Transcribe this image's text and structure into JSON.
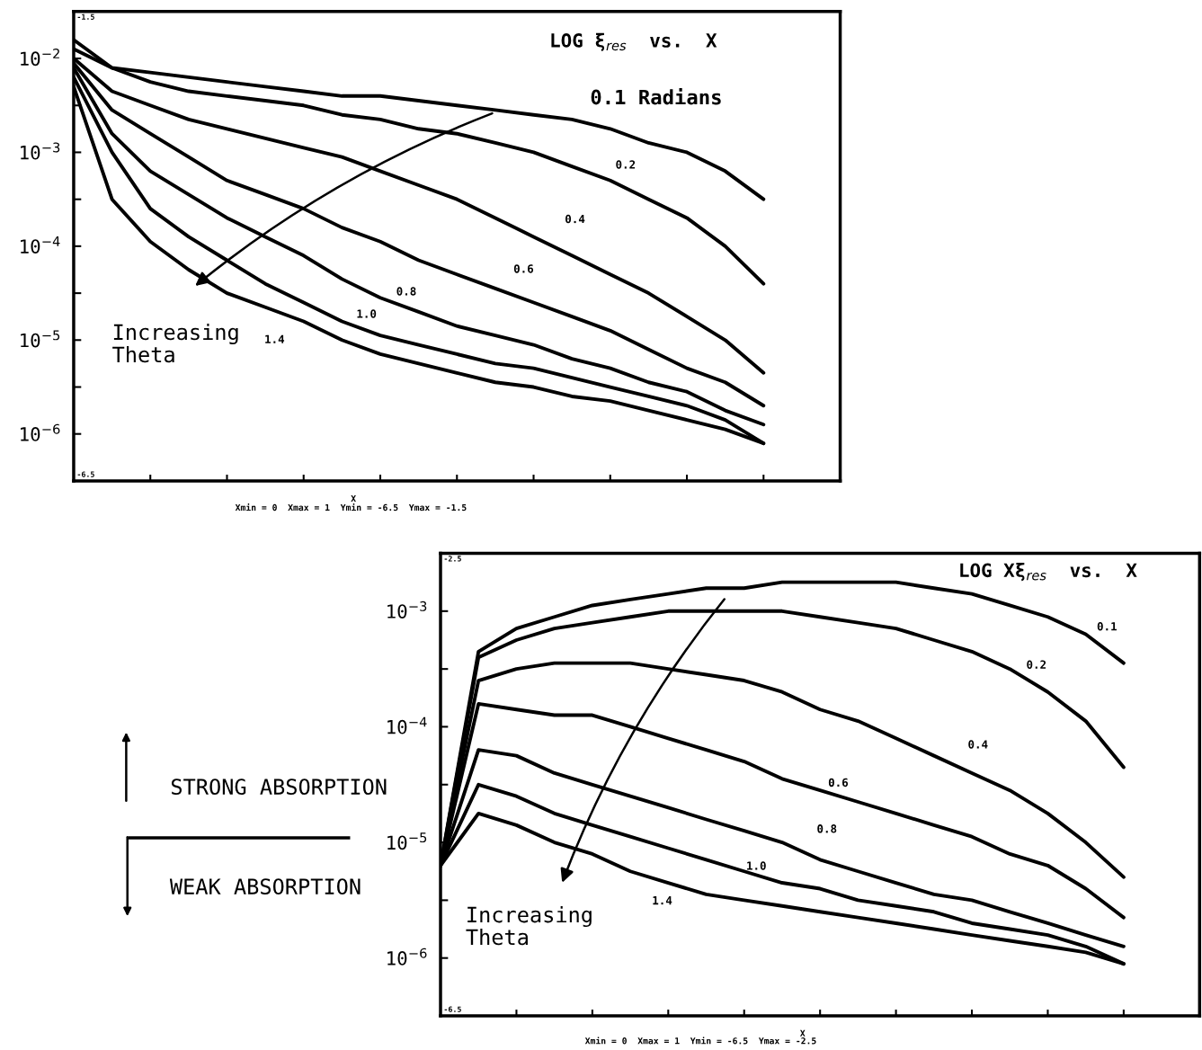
{
  "chart_data": [
    {
      "type": "line",
      "title": "LOG ξ$_{res}$  vs.  X",
      "xlabel": "X",
      "log": "y",
      "tick_labels": "y",
      "grid": false,
      "legend": false,
      "marker": "none",
      "line_style": "solid",
      "categories": [
        null,
        null,
        null,
        null,
        null,
        null,
        null,
        null,
        null,
        null,
        null,
        null,
        null,
        null,
        null,
        null,
        null,
        null,
        null,
        null,
        null
      ],
      "ylim": [
        3.16e-07,
        0.0316
      ],
      "yticks": [
        {
          "value": 0.01,
          "label": "10$^{−2}$"
        },
        {
          "value": 0.00316,
          "label": null
        },
        {
          "value": 0.001,
          "label": "10$^{−3}$"
        },
        {
          "value": 0.000316,
          "label": null
        },
        {
          "value": 0.0001,
          "label": "10$^{−4}$"
        },
        {
          "value": 3.16e-05,
          "label": null
        },
        {
          "value": 1e-05,
          "label": "10$^{−5}$"
        },
        {
          "value": 3.16e-06,
          "label": null
        },
        {
          "value": 1e-06,
          "label": "10$^{−6}$"
        }
      ],
      "series": [
        {
          "name": "0.1 Radians",
          "color": "#000000",
          "values": [
            0.0158,
            0.00794,
            0.00708,
            0.00631,
            0.00562,
            0.00501,
            0.00447,
            0.00398,
            0.00398,
            0.00355,
            0.00316,
            0.00282,
            0.00251,
            0.00224,
            0.00178,
            0.00126,
            0.001,
            0.000631,
            0.000316,
            null,
            null
          ]
        },
        {
          "name": "0.2",
          "color": "#000000",
          "values": [
            0.0126,
            0.00794,
            0.00562,
            0.00447,
            0.00398,
            0.00355,
            0.00316,
            0.00251,
            0.00224,
            0.00178,
            0.00158,
            0.00126,
            0.001,
            0.000708,
            0.000501,
            0.000316,
            0.0002,
            0.0001,
            3.98e-05,
            null,
            null
          ]
        },
        {
          "name": "0.4",
          "color": "#000000",
          "values": [
            0.01,
            0.00447,
            0.00316,
            0.00224,
            0.00178,
            0.00141,
            0.00112,
            0.000891,
            0.000631,
            0.000447,
            0.000316,
            0.0002,
            0.000126,
            7.94e-05,
            5.01e-05,
            3.16e-05,
            1.78e-05,
            1e-05,
            4.47e-06,
            null,
            null
          ]
        },
        {
          "name": "0.6",
          "color": "#000000",
          "values": [
            0.00891,
            0.00282,
            0.00158,
            0.000891,
            0.000501,
            0.000355,
            0.000251,
            0.000158,
            0.000112,
            7.08e-05,
            5.01e-05,
            3.55e-05,
            2.51e-05,
            1.78e-05,
            1.26e-05,
            7.94e-06,
            5.01e-06,
            3.55e-06,
            2e-06,
            null,
            null
          ]
        },
        {
          "name": "0.8",
          "color": "#000000",
          "values": [
            0.00794,
            0.00158,
            0.000631,
            0.000355,
            0.0002,
            0.000126,
            7.94e-05,
            4.47e-05,
            2.82e-05,
            2e-05,
            1.41e-05,
            1.12e-05,
            8.91e-06,
            6.31e-06,
            5.01e-06,
            3.55e-06,
            2.82e-06,
            1.78e-06,
            1.26e-06,
            null,
            null
          ]
        },
        {
          "name": "1.0",
          "color": "#000000",
          "values": [
            0.00631,
            0.001,
            0.000251,
            0.000126,
            7.08e-05,
            3.98e-05,
            2.51e-05,
            1.58e-05,
            1.12e-05,
            8.91e-06,
            7.08e-06,
            5.62e-06,
            5.01e-06,
            3.98e-06,
            3.16e-06,
            2.51e-06,
            2e-06,
            1.41e-06,
            7.94e-07,
            null,
            null
          ]
        },
        {
          "name": "1.4",
          "color": "#000000",
          "values": [
            0.00501,
            0.000316,
            0.000112,
            5.62e-05,
            3.16e-05,
            2.24e-05,
            1.58e-05,
            1e-05,
            7.08e-06,
            5.62e-06,
            4.47e-06,
            3.55e-06,
            3.16e-06,
            2.51e-06,
            2.24e-06,
            1.78e-06,
            1.41e-06,
            1.12e-06,
            7.94e-07,
            null,
            null
          ]
        }
      ],
      "annotations": [
        "Increasing\nTheta",
        "-1.5",
        "-6.5",
        "Xmin = 0  Xmax = 1  Ymin = -6.5  Ymax = -1.5"
      ]
    },
    {
      "type": "line",
      "title": "LOG Xξ$_{res}$  vs.  X",
      "xlabel": "X",
      "log": "y",
      "tick_labels": "y",
      "grid": false,
      "legend": false,
      "marker": "none",
      "line_style": "solid",
      "categories": [
        null,
        null,
        null,
        null,
        null,
        null,
        null,
        null,
        null,
        null,
        null,
        null,
        null,
        null,
        null,
        null,
        null,
        null,
        null,
        null,
        null
      ],
      "ylim": [
        3.16e-07,
        0.00316
      ],
      "yticks": [
        {
          "value": 0.001,
          "label": "10$^{−3}$"
        },
        {
          "value": 0.000316,
          "label": null
        },
        {
          "value": 0.0001,
          "label": "10$^{−4}$"
        },
        {
          "value": 3.16e-05,
          "label": null
        },
        {
          "value": 1e-05,
          "label": "10$^{−5}$"
        },
        {
          "value": 3.16e-06,
          "label": null
        },
        {
          "value": 1e-06,
          "label": "10$^{−6}$"
        }
      ],
      "series": [
        {
          "name": "0.1",
          "color": "#000000",
          "values": [
            6.31e-06,
            0.000447,
            0.000708,
            0.000891,
            0.00112,
            0.00126,
            0.00141,
            0.00158,
            0.00158,
            0.00178,
            0.00178,
            0.00178,
            0.00178,
            0.00158,
            0.00141,
            0.00112,
            0.000891,
            0.000631,
            0.000355,
            null,
            null
          ]
        },
        {
          "name": "0.2",
          "color": "#000000",
          "values": [
            6.31e-06,
            0.000398,
            0.000562,
            0.000708,
            0.000794,
            0.000891,
            0.001,
            0.001,
            0.001,
            0.001,
            0.000891,
            0.000794,
            0.000708,
            0.000562,
            0.000447,
            0.000316,
            0.0002,
            0.000112,
            4.47e-05,
            null,
            null
          ]
        },
        {
          "name": "0.4",
          "color": "#000000",
          "values": [
            6.31e-06,
            0.000251,
            0.000316,
            0.000355,
            0.000355,
            0.000355,
            0.000316,
            0.000282,
            0.000251,
            0.0002,
            0.000141,
            0.000112,
            7.94e-05,
            5.62e-05,
            3.98e-05,
            2.82e-05,
            1.78e-05,
            1e-05,
            5.01e-06,
            null,
            null
          ]
        },
        {
          "name": "0.6",
          "color": "#000000",
          "values": [
            6.31e-06,
            0.000158,
            0.000141,
            0.000126,
            0.000126,
            0.0001,
            7.94e-05,
            6.31e-05,
            5.01e-05,
            3.55e-05,
            2.82e-05,
            2.24e-05,
            1.78e-05,
            1.41e-05,
            1.12e-05,
            7.94e-06,
            6.31e-06,
            3.98e-06,
            2.24e-06,
            null,
            null
          ]
        },
        {
          "name": "0.8",
          "color": "#000000",
          "values": [
            6.31e-06,
            6.31e-05,
            5.62e-05,
            3.98e-05,
            3.16e-05,
            2.51e-05,
            2e-05,
            1.58e-05,
            1.26e-05,
            1e-05,
            7.08e-06,
            5.62e-06,
            4.47e-06,
            3.55e-06,
            3.16e-06,
            2.51e-06,
            2e-06,
            1.58e-06,
            1.26e-06,
            null,
            null
          ]
        },
        {
          "name": "1.0",
          "color": "#000000",
          "values": [
            6.31e-06,
            3.16e-05,
            2.51e-05,
            1.78e-05,
            1.41e-05,
            1.12e-05,
            8.91e-06,
            7.08e-06,
            5.62e-06,
            4.47e-06,
            3.98e-06,
            3.16e-06,
            2.82e-06,
            2.51e-06,
            2e-06,
            1.78e-06,
            1.58e-06,
            1.26e-06,
            8.91e-07,
            null,
            null
          ]
        },
        {
          "name": "1.4",
          "color": "#000000",
          "values": [
            6.31e-06,
            1.78e-05,
            1.41e-05,
            1e-05,
            7.94e-06,
            5.62e-06,
            4.47e-06,
            3.55e-06,
            3.16e-06,
            2.82e-06,
            2.51e-06,
            2.24e-06,
            2e-06,
            1.78e-06,
            1.58e-06,
            1.41e-06,
            1.26e-06,
            1.12e-06,
            8.91e-07,
            null,
            null
          ]
        }
      ],
      "annotations": [
        "Increasing\nTheta",
        "-2.5",
        "-6.5",
        "Xmin = 0  Xmax = 1  Ymin = -6.5  Ymax = -2.5",
        "STRONG ABSORPTION",
        "WEAK ABSORPTION"
      ]
    }
  ]
}
